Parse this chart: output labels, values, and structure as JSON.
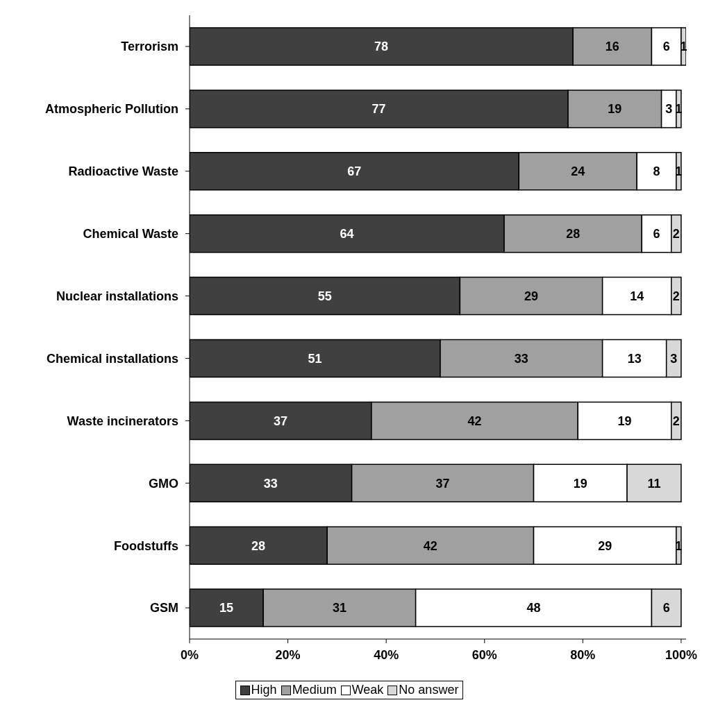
{
  "chart_data": {
    "type": "bar",
    "orientation": "horizontal",
    "stacked": true,
    "data_labels": true,
    "legend": "bottom",
    "grid": false,
    "categories": [
      "Terrorism",
      "Atmospheric Pollution",
      "Radioactive Waste",
      "Chemical Waste",
      "Nuclear installations",
      "Chemical installations",
      "Waste incinerators",
      "GMO",
      "Foodstuffs",
      "GSM"
    ],
    "series": [
      {
        "name": "High",
        "color": "#404040",
        "values": [
          78,
          77,
          67,
          64,
          55,
          51,
          37,
          33,
          28,
          15
        ]
      },
      {
        "name": "Medium",
        "color": "#a0a0a0",
        "values": [
          16,
          19,
          24,
          28,
          29,
          33,
          42,
          37,
          42,
          31
        ]
      },
      {
        "name": "Weak",
        "color": "#ffffff",
        "values": [
          6,
          3,
          8,
          6,
          14,
          13,
          19,
          19,
          29,
          48
        ]
      },
      {
        "name": "No answer",
        "color": "#d8d8d8",
        "values": [
          1,
          1,
          1,
          2,
          2,
          3,
          2,
          11,
          1,
          6
        ]
      }
    ],
    "xlim": [
      0,
      101
    ],
    "xticks": [
      {
        "value": 0,
        "label": "0%"
      },
      {
        "value": 20,
        "label": "20%"
      },
      {
        "value": 40,
        "label": "40%"
      },
      {
        "value": 60,
        "label": "60%"
      },
      {
        "value": 80,
        "label": "80%"
      },
      {
        "value": 100,
        "label": "100%"
      }
    ]
  }
}
